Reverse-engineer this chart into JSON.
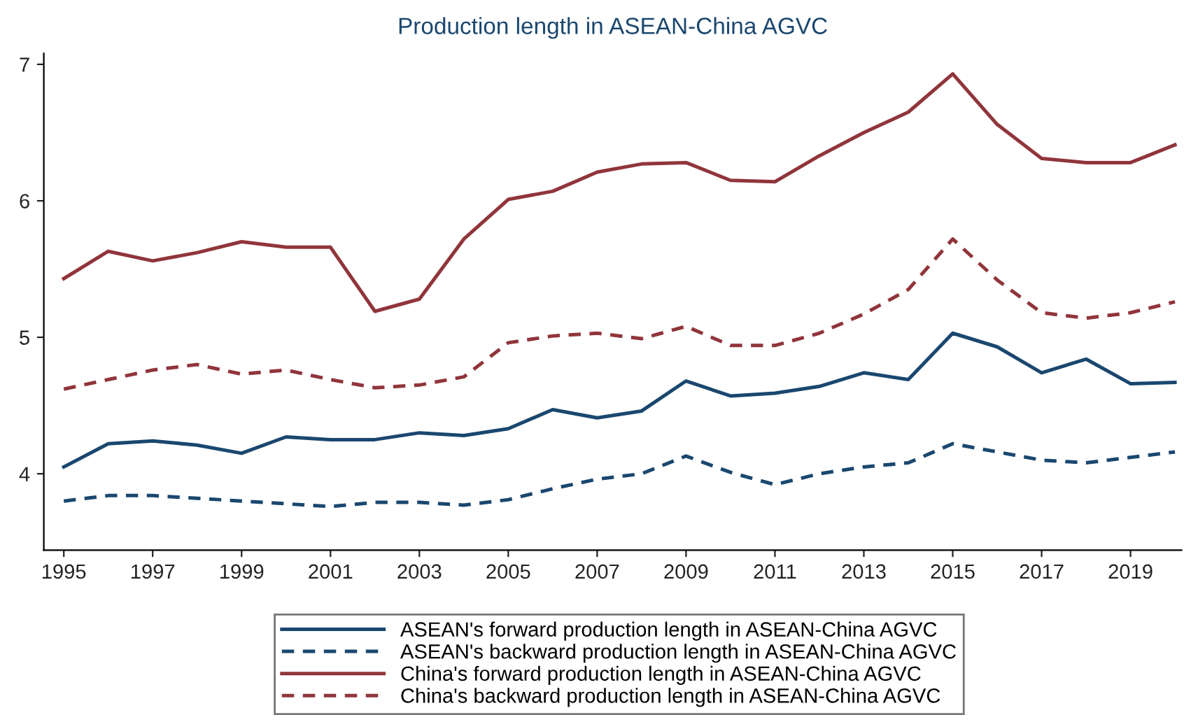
{
  "chart_data": {
    "type": "line",
    "title": "Production length in ASEAN-China AGVC",
    "x": [
      1995,
      1996,
      1997,
      1998,
      1999,
      2000,
      2001,
      2002,
      2003,
      2004,
      2005,
      2006,
      2007,
      2008,
      2009,
      2010,
      2011,
      2012,
      2013,
      2014,
      2015,
      2016,
      2017,
      2018,
      2019,
      2020
    ],
    "series": [
      {
        "name": "ASEAN's forward production length in ASEAN-China AGVC",
        "color": "#1a476f",
        "line_style": "solid",
        "values": [
          4.05,
          4.22,
          4.24,
          4.21,
          4.15,
          4.27,
          4.25,
          4.25,
          4.3,
          4.28,
          4.33,
          4.47,
          4.41,
          4.46,
          4.68,
          4.57,
          4.59,
          4.64,
          4.74,
          4.69,
          5.03,
          4.93,
          4.74,
          4.84,
          4.66,
          4.67
        ]
      },
      {
        "name": "ASEAN's backward production length in ASEAN-China AGVC",
        "color": "#1a476f",
        "line_style": "dashed",
        "values": [
          3.8,
          3.84,
          3.84,
          3.82,
          3.8,
          3.78,
          3.76,
          3.79,
          3.79,
          3.77,
          3.81,
          3.89,
          3.96,
          4.0,
          4.13,
          4.01,
          3.92,
          4.0,
          4.05,
          4.08,
          4.22,
          4.16,
          4.1,
          4.08,
          4.12,
          4.16
        ]
      },
      {
        "name": "China's forward production length in ASEAN-China AGVC",
        "color": "#90353b",
        "line_style": "solid",
        "values": [
          5.43,
          5.63,
          5.56,
          5.62,
          5.7,
          5.66,
          5.66,
          5.19,
          5.28,
          5.72,
          6.01,
          6.07,
          6.21,
          6.27,
          6.28,
          6.15,
          6.14,
          6.33,
          6.5,
          6.65,
          6.93,
          6.56,
          6.31,
          6.28,
          6.28,
          6.41
        ]
      },
      {
        "name": "China's backward production length in ASEAN-China AGVC",
        "color": "#90353b",
        "line_style": "dashed",
        "values": [
          4.62,
          4.69,
          4.76,
          4.8,
          4.73,
          4.76,
          4.69,
          4.63,
          4.65,
          4.71,
          4.96,
          5.01,
          5.03,
          4.99,
          5.08,
          4.94,
          4.94,
          5.03,
          5.17,
          5.35,
          5.72,
          5.42,
          5.18,
          5.14,
          5.18,
          5.26
        ]
      }
    ],
    "xlim": [
      1994.55,
      2020.15
    ],
    "xticks": [
      1995,
      1997,
      1999,
      2001,
      2003,
      2005,
      2007,
      2009,
      2011,
      2013,
      2015,
      2017,
      2019
    ],
    "ylim": [
      3.44,
      7.08
    ],
    "yticks": [
      4,
      5,
      6,
      7
    ],
    "grid": false,
    "legend": "bottom",
    "marker": "none"
  }
}
